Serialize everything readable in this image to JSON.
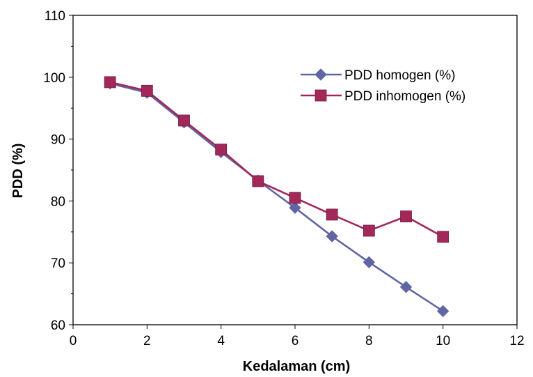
{
  "chart_data": {
    "type": "line",
    "xlabel": "Kedalaman (cm)",
    "ylabel": "PDD (%)",
    "xlim": [
      0,
      12
    ],
    "ylim": [
      60,
      110
    ],
    "x_ticks": [
      "0",
      "2",
      "4",
      "6",
      "8",
      "10",
      "12"
    ],
    "y_ticks": [
      "60",
      "70",
      "80",
      "90",
      "100",
      "110"
    ],
    "grid": false,
    "legend_position": "top-right",
    "x": [
      1,
      2,
      3,
      4,
      5,
      6,
      7,
      8,
      9,
      10
    ],
    "series": [
      {
        "name": "PDD homogen (%)",
        "marker": "diamond",
        "color": "#6065a3",
        "values": [
          99.0,
          97.5,
          92.7,
          87.9,
          83.3,
          78.9,
          74.3,
          70.1,
          66.1,
          62.2
        ]
      },
      {
        "name": "PDD inhomogen (%)",
        "marker": "square",
        "color": "#a3285a",
        "values": [
          99.2,
          97.8,
          93.0,
          88.3,
          83.2,
          80.5,
          77.8,
          75.2,
          77.5,
          74.2
        ]
      }
    ]
  }
}
